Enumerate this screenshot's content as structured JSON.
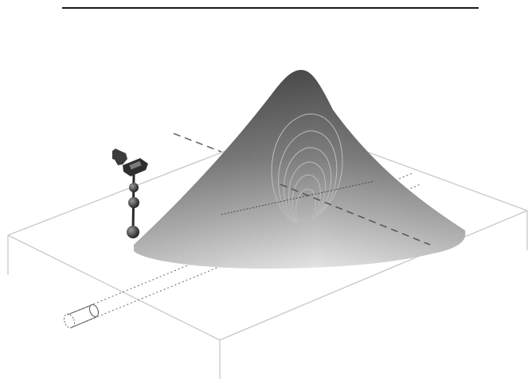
{
  "colors": {
    "background": "#ffffff",
    "top_rule": "#1a1a1a",
    "box_outline": "#c8c8c8",
    "cone_light": "#e4e4e4",
    "cone_dark": "#4a4a4a",
    "contour": "#bdbdbd",
    "dashed_line": "#6a6a6a",
    "pipe": "#666666",
    "instrument": "#3c3c3c"
  },
  "icons": {
    "instrument": "locator-device-icon",
    "pipe": "buried-pipe-icon"
  }
}
